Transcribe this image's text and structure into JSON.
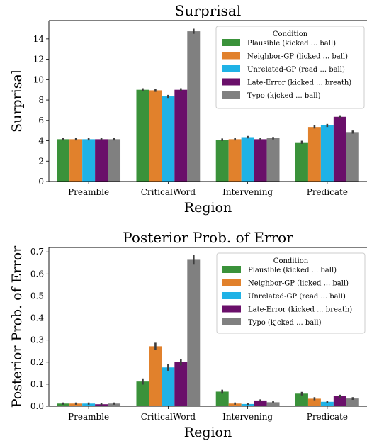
{
  "chart_data": [
    {
      "type": "bar",
      "title": "Surprisal",
      "xlabel": "Region",
      "ylabel": "Surprisal",
      "ylim": [
        0,
        15.8
      ],
      "yticks": [
        0,
        2,
        4,
        6,
        8,
        10,
        12,
        14
      ],
      "ytick_labels": [
        "0",
        "2",
        "4",
        "6",
        "8",
        "10",
        "12",
        "14"
      ],
      "categories": [
        "Preamble",
        "CriticalWord",
        "Intervening",
        "Predicate"
      ],
      "legend": {
        "title": "Condition",
        "position": "top-right"
      },
      "grid": false,
      "series": [
        {
          "name": "Plausible (kicked ... ball)",
          "color": "#3a923a",
          "values": [
            4.15,
            9.0,
            4.1,
            3.85
          ],
          "err": [
            0.12,
            0.15,
            0.12,
            0.15
          ]
        },
        {
          "name": "Neighbor-GP (licked ... ball)",
          "color": "#e1812c",
          "values": [
            4.15,
            8.95,
            4.15,
            5.35
          ],
          "err": [
            0.12,
            0.15,
            0.12,
            0.15
          ]
        },
        {
          "name": "Unrelated-GP (read ... ball)",
          "color": "#1fb2e6",
          "values": [
            4.15,
            8.35,
            4.35,
            5.5
          ],
          "err": [
            0.12,
            0.15,
            0.12,
            0.15
          ]
        },
        {
          "name": "Late-Error (kicked ... breath)",
          "color": "#6a0f6a",
          "values": [
            4.15,
            9.0,
            4.15,
            6.35
          ],
          "err": [
            0.12,
            0.15,
            0.12,
            0.15
          ]
        },
        {
          "name": "Typo (kjcked ... ball)",
          "color": "#808080",
          "values": [
            4.15,
            14.75,
            4.25,
            4.85
          ],
          "err": [
            0.12,
            0.25,
            0.12,
            0.15
          ]
        }
      ]
    },
    {
      "type": "bar",
      "title": "Posterior Prob. of Error",
      "xlabel": "Region",
      "ylabel": "Posterior Prob. of Error",
      "ylim": [
        0,
        0.72
      ],
      "yticks": [
        0,
        0.1,
        0.2,
        0.3,
        0.4,
        0.5,
        0.6,
        0.7
      ],
      "ytick_labels": [
        "0.0",
        "0.1",
        "0.2",
        "0.3",
        "0.4",
        "0.5",
        "0.6",
        "0.7"
      ],
      "categories": [
        "Preamble",
        "CriticalWord",
        "Intervening",
        "Predicate"
      ],
      "legend": {
        "title": "Condition",
        "position": "top-right"
      },
      "grid": false,
      "series": [
        {
          "name": "Plausible (kicked ... ball)",
          "color": "#3a923a",
          "values": [
            0.012,
            0.112,
            0.066,
            0.057
          ],
          "err": [
            0.005,
            0.014,
            0.009,
            0.008
          ]
        },
        {
          "name": "Neighbor-GP (licked ... ball)",
          "color": "#e1812c",
          "values": [
            0.012,
            0.272,
            0.012,
            0.034
          ],
          "err": [
            0.005,
            0.016,
            0.005,
            0.007
          ]
        },
        {
          "name": "Unrelated-GP (read ... ball)",
          "color": "#1fb2e6",
          "values": [
            0.012,
            0.176,
            0.01,
            0.02
          ],
          "err": [
            0.005,
            0.015,
            0.004,
            0.005
          ]
        },
        {
          "name": "Late-Error (kicked ... breath)",
          "color": "#6a0f6a",
          "values": [
            0.009,
            0.2,
            0.026,
            0.045
          ],
          "err": [
            0.004,
            0.015,
            0.005,
            0.007
          ]
        },
        {
          "name": "Typo (kjcked ... ball)",
          "color": "#808080",
          "values": [
            0.012,
            0.664,
            0.018,
            0.035
          ],
          "err": [
            0.005,
            0.022,
            0.005,
            0.006
          ]
        }
      ]
    }
  ]
}
